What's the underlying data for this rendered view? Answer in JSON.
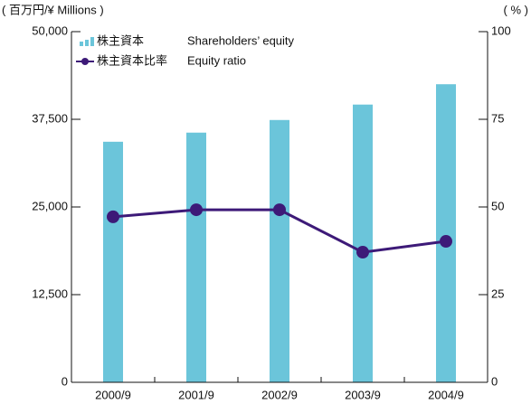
{
  "chart_data": {
    "type": "bar_line",
    "y_axis_label": "( 百万円/¥ Millions )",
    "y2_axis_label": "( % )",
    "categories": [
      "2000/9",
      "2001/9",
      "2002/9",
      "2003/9",
      "2004/9"
    ],
    "series": [
      {
        "name": "株主資本",
        "name_en": "Shareholders’ equity",
        "type": "bar",
        "color": "#6bc5da",
        "values": [
          34300,
          35600,
          37400,
          39600,
          42500
        ]
      },
      {
        "name": "株主資本比率",
        "name_en": "Equity ratio",
        "type": "line",
        "axis": "y2",
        "color": "#3d1a78",
        "values": [
          47.2,
          49.2,
          49.2,
          37.1,
          40.2
        ]
      }
    ],
    "ylim": [
      0,
      50000
    ],
    "yticks": [
      0,
      {
        "value": 12500,
        "label": "12,500"
      },
      {
        "value": 25000,
        "label": "25,000"
      },
      {
        "value": 37500,
        "label": "37,500"
      },
      {
        "value": 50000,
        "label": "50,000"
      }
    ],
    "y2lim": [
      0,
      100
    ],
    "y2ticks": [
      0,
      25,
      50,
      75,
      100
    ],
    "grid": false
  }
}
